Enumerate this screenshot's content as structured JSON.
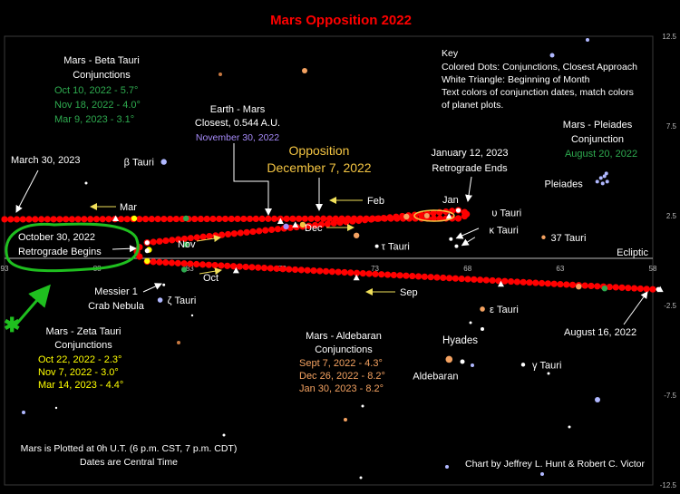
{
  "chart_data": {
    "type": "scatter",
    "title": "Mars Opposition 2022",
    "x_axis": {
      "range": [
        93,
        58
      ],
      "reversed": true,
      "ticks": [
        93,
        88,
        83,
        78,
        73,
        68,
        63,
        58
      ],
      "tick_labels": [
        "93",
        "88",
        "83",
        "78",
        "73",
        "68",
        "63",
        "58"
      ]
    },
    "y_axis": {
      "range": [
        -12.5,
        12.5
      ],
      "ticks": [
        12.5,
        7.5,
        2.5,
        -2.5,
        -7.5,
        -12.5
      ],
      "tick_labels": [
        "12.5",
        "7.5",
        "2.5",
        "-2.5",
        "-7.5",
        "-12.5"
      ]
    },
    "ecliptic": {
      "label": "Ecliptic",
      "y": 0
    },
    "colors": {
      "mars": "#ff0000",
      "title": "#ff0000",
      "beta": "#2eaa4f",
      "zeta": "#ffff00",
      "aldebaran": "#f4a261",
      "earth_mars": "#a78bfa",
      "opposition": "#f4c542",
      "pleiades_date": "#2eaa4f",
      "arrow": "#f1e05a",
      "green_mark": "#1fbf1f"
    },
    "mars_track": {
      "name": "Mars",
      "x_start": 58,
      "y_start": -1.6,
      "x_turn_1": 68.5,
      "y_turn_1": 2.8,
      "date_turn_1": "January 12, 2023",
      "x_turn_2": 85.3,
      "y_turn_2": 1.0,
      "date_turn_2": "October 30, 2022",
      "x_end": 93,
      "y_end": 2.3,
      "legs": [
        {
          "from": [
            58,
            -1.6
          ],
          "to": [
            85.3,
            -0.05
          ]
        },
        {
          "from": [
            85.3,
            1.0
          ],
          "to": [
            68.5,
            2.8
          ]
        },
        {
          "from": [
            68.5,
            2.35
          ],
          "to": [
            93,
            2.3
          ]
        }
      ]
    },
    "stars": [
      {
        "name": "β Tauri",
        "x": 84.4,
        "y": 5.5
      },
      {
        "name": "ζ Tauri",
        "x": 84.6,
        "y": -2.2
      },
      {
        "name": "τ Tauri",
        "x": 72.9,
        "y": 0.8
      },
      {
        "name": "υ Tauri",
        "x": 68.9,
        "y": 1.2
      },
      {
        "name": "κ Tauri",
        "x": 68.6,
        "y": 0.8
      },
      {
        "name": "37 Tauri",
        "x": 63.9,
        "y": 1.3
      },
      {
        "name": "ε Tauri",
        "x": 67.2,
        "y": -2.7
      },
      {
        "name": "γ Tauri",
        "x": 65.0,
        "y": -5.8
      },
      {
        "name": "Aldebaran",
        "x": 69.0,
        "y": -5.5
      },
      {
        "name": "Pleiades",
        "x": 61.0,
        "y": 4.4
      }
    ],
    "key": {
      "title": "Key",
      "lines": [
        "Colored Dots: Conjunctions, Closest Approach",
        "White Triangle: Beginning of Month",
        "Text colors of conjunction dates, match colors",
        "of planet plots."
      ]
    },
    "annotations": {
      "beta_title": "Mars - Beta Tauri",
      "beta_sub": "Conjunctions",
      "beta_dates": [
        "Oct 10, 2022 - 5.7°",
        "Nov 18, 2022 - 4.0°",
        "Mar 9, 2023 - 3.1°"
      ],
      "earth_title": "Earth - Mars",
      "earth_sub": "Closest, 0.544 A.U.",
      "earth_date": "November 30, 2022",
      "opp_title": "Opposition",
      "opp_date": "December 7, 2022",
      "jan_title": "January 12, 2023",
      "jan_sub": "Retrograde Ends",
      "pleiades_title": "Mars - Pleiades",
      "pleiades_sub": "Conjunction",
      "pleiades_date": "August 20, 2022",
      "mar30": "March 30, 2023",
      "oct30_title": "October 30, 2022",
      "oct30_sub": "Retrograde Begins",
      "messier_title": "Messier 1",
      "messier_sub": "Crab Nebula",
      "zeta_title": "Mars - Zeta Tauri",
      "zeta_sub": "Conjunctions",
      "zeta_dates": [
        "Oct 22, 2022 - 2.3°",
        "Nov 7, 2022 - 3.0°",
        "Mar 14, 2023 - 4.4°"
      ],
      "ald_title": "Mars - Aldebaran",
      "ald_sub": "Conjunctions",
      "ald_dates": [
        "Sept 7, 2022 - 4.3°",
        "Dec 26, 2022 - 8.2°",
        "Jan 30, 2023 - 8.2°"
      ],
      "hyades": "Hyades",
      "aug16": "August 16, 2022",
      "footer_left_1": "Mars is Plotted at 0h U.T. (6 p.m. CST, 7 p.m. CDT)",
      "footer_left_2": "Dates are Central Time",
      "credit": "Chart by Jeffrey L. Hunt & Robert C. Victor",
      "months": [
        "Mar",
        "Feb",
        "Jan",
        "Dec",
        "Nov",
        "Oct",
        "Sep"
      ]
    }
  }
}
